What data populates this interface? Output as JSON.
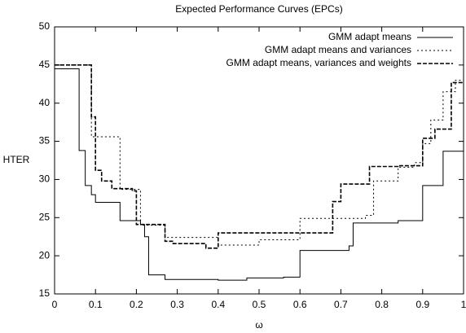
{
  "chart_data": {
    "type": "line",
    "step": "post",
    "title": "Expected Performance Curves (EPCs)",
    "x_label": "ω",
    "y_label": "HTER",
    "xlim": [
      0,
      1
    ],
    "ylim": [
      15,
      50
    ],
    "xticks": [
      0,
      0.1,
      0.2,
      0.3,
      0.4,
      0.5,
      0.6,
      0.7,
      0.8,
      0.9,
      1
    ],
    "yticks": [
      15,
      20,
      25,
      30,
      35,
      40,
      45,
      50
    ],
    "legend": "top-right",
    "grid": false,
    "series": [
      {
        "name": "GMM adapt means",
        "color": "#000000",
        "dash": "solid",
        "x": [
          0,
          0.06,
          0.075,
          0.09,
          0.1,
          0.16,
          0.21,
          0.22,
          0.23,
          0.27,
          0.4,
          0.47,
          0.56,
          0.6,
          0.72,
          0.73,
          0.84,
          0.9,
          0.95,
          0.98
        ],
        "values": [
          44.5,
          33.8,
          29.2,
          28.0,
          27.0,
          24.6,
          24.1,
          22.5,
          17.5,
          16.9,
          16.8,
          17.1,
          17.2,
          20.7,
          21.3,
          24.3,
          24.6,
          29.2,
          33.7,
          33.7
        ]
      },
      {
        "name": "GMM adapt means and variances",
        "color": "#000000",
        "dash": "dotted",
        "x": [
          0,
          0.09,
          0.16,
          0.21,
          0.27,
          0.4,
          0.5,
          0.6,
          0.76,
          0.78,
          0.84,
          0.88,
          0.9,
          0.92,
          0.95,
          0.98
        ],
        "values": [
          45,
          35.6,
          28.7,
          24.0,
          22.4,
          21.4,
          22.1,
          24.9,
          25.3,
          29.8,
          31.6,
          32.2,
          34.7,
          37.8,
          41.5,
          43.0
        ]
      },
      {
        "name": "GMM adapt means, variances and weights",
        "color": "#000000",
        "dash": "dashed",
        "x": [
          0,
          0.09,
          0.1,
          0.115,
          0.14,
          0.19,
          0.2,
          0.27,
          0.29,
          0.37,
          0.4,
          0.6,
          0.68,
          0.7,
          0.77,
          0.84,
          0.9,
          0.93,
          0.97
        ],
        "values": [
          45,
          38.2,
          31.2,
          29.8,
          28.8,
          28.5,
          24.1,
          21.9,
          21.6,
          21.0,
          23.0,
          23.0,
          27.1,
          29.4,
          31.7,
          31.8,
          35.4,
          36.6,
          42.7
        ]
      }
    ]
  }
}
